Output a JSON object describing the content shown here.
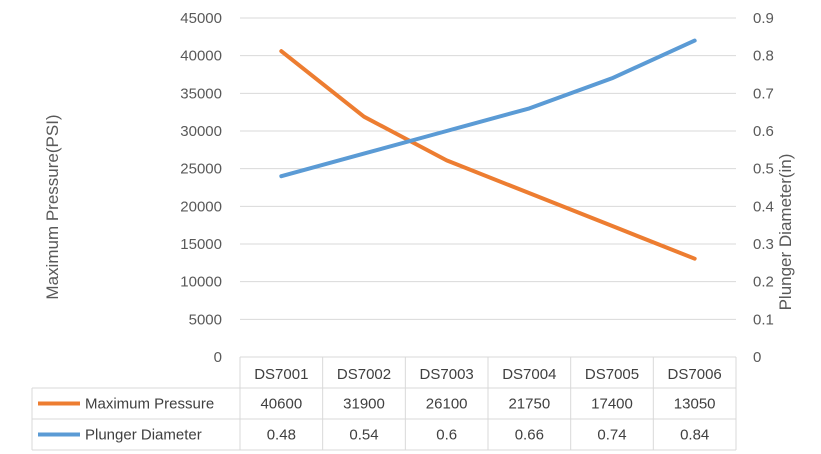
{
  "chart_data": {
    "type": "line",
    "categories": [
      "DS7001",
      "DS7002",
      "DS7003",
      "DS7004",
      "DS7005",
      "DS7006"
    ],
    "series": [
      {
        "name": "Maximum Pressure",
        "axis": "left",
        "color": "#ED7D31",
        "values": [
          40600,
          31900,
          26100,
          21750,
          17400,
          13050
        ]
      },
      {
        "name": "Plunger Diameter",
        "axis": "right",
        "color": "#5B9BD5",
        "values": [
          0.48,
          0.54,
          0.6,
          0.66,
          0.74,
          0.84
        ]
      }
    ],
    "ylabel": "Maximum Pressure(PSI)",
    "y2label": "Plunger Diameter(in)",
    "ylim": [
      0,
      45000
    ],
    "y2lim": [
      0,
      0.9
    ],
    "yticks": [
      "0",
      "5000",
      "10000",
      "15000",
      "20000",
      "25000",
      "30000",
      "35000",
      "40000",
      "45000"
    ],
    "y2ticks": [
      "0",
      "0.1",
      "0.2",
      "0.3",
      "0.4",
      "0.5",
      "0.6",
      "0.7",
      "0.8",
      "0.9"
    ],
    "data_table": true,
    "grid": true,
    "gridline_color": "#d9d9d9"
  }
}
